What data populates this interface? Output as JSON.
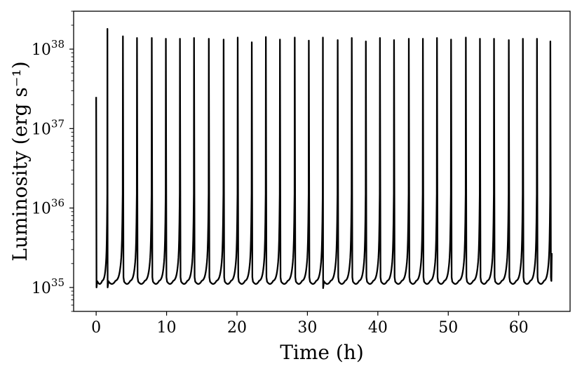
{
  "chart_data": {
    "type": "line",
    "title": "",
    "xlabel": "Time (h)",
    "ylabel": "Luminosity (erg s⁻¹)",
    "xlim": [
      -3.2,
      67.3
    ],
    "ylim": [
      5e+34,
      3e+38
    ],
    "yscale": "log",
    "grid": false,
    "x_ticks": [
      0,
      10,
      20,
      30,
      40,
      50,
      60
    ],
    "y_ticks": [
      {
        "value": 1e+35,
        "base": "10",
        "exp": "35"
      },
      {
        "value": 1e+36,
        "base": "10",
        "exp": "36"
      },
      {
        "value": 1e+37,
        "base": "10",
        "exp": "37"
      },
      {
        "value": 1e+38,
        "base": "10",
        "exp": "38"
      }
    ],
    "series": [
      {
        "name": "",
        "color": "#000000",
        "baseline": 1.2e+35,
        "start": {
          "x": 0.0,
          "y": 2.5e+37
        },
        "end": {
          "x": 64.7,
          "y": 2.7e+35
        },
        "bursts": [
          {
            "t": 1.6,
            "peak": 1.8e+38
          },
          {
            "t": 3.8,
            "peak": 1.45e+38
          },
          {
            "t": 5.8,
            "peak": 1.38e+38
          },
          {
            "t": 7.9,
            "peak": 1.38e+38
          },
          {
            "t": 9.9,
            "peak": 1.35e+38
          },
          {
            "t": 11.9,
            "peak": 1.35e+38
          },
          {
            "t": 13.9,
            "peak": 1.38e+38
          },
          {
            "t": 16.0,
            "peak": 1.35e+38
          },
          {
            "t": 18.1,
            "peak": 1.32e+38
          },
          {
            "t": 20.1,
            "peak": 1.4e+38
          },
          {
            "t": 22.1,
            "peak": 1.22e+38
          },
          {
            "t": 24.1,
            "peak": 1.42e+38
          },
          {
            "t": 26.1,
            "peak": 1.32e+38
          },
          {
            "t": 28.2,
            "peak": 1.4e+38
          },
          {
            "t": 30.2,
            "peak": 1.28e+38
          },
          {
            "t": 32.2,
            "peak": 1.4e+38
          },
          {
            "t": 34.3,
            "peak": 1.3e+38
          },
          {
            "t": 36.3,
            "peak": 1.38e+38
          },
          {
            "t": 38.3,
            "peak": 1.25e+38
          },
          {
            "t": 40.3,
            "peak": 1.38e+38
          },
          {
            "t": 42.3,
            "peak": 1.3e+38
          },
          {
            "t": 44.4,
            "peak": 1.35e+38
          },
          {
            "t": 46.4,
            "peak": 1.35e+38
          },
          {
            "t": 48.4,
            "peak": 1.38e+38
          },
          {
            "t": 50.4,
            "peak": 1.32e+38
          },
          {
            "t": 52.5,
            "peak": 1.4e+38
          },
          {
            "t": 54.5,
            "peak": 1.35e+38
          },
          {
            "t": 56.5,
            "peak": 1.35e+38
          },
          {
            "t": 58.6,
            "peak": 1.3e+38
          },
          {
            "t": 60.6,
            "peak": 1.35e+38
          },
          {
            "t": 62.6,
            "peak": 1.35e+38
          },
          {
            "t": 64.5,
            "peak": 1.25e+38
          }
        ],
        "dips": [
          {
            "t": 0.05,
            "y": 1e+35
          },
          {
            "t": 1.65,
            "y": 1e+35
          },
          {
            "t": 32.25,
            "y": 9.8e+34
          }
        ]
      }
    ]
  }
}
